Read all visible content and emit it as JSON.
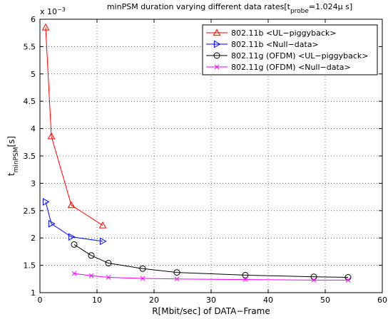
{
  "chart_data": {
    "type": "line",
    "title": {
      "main": "minPSM duration varying different data rates[t",
      "sub": "probe",
      "after": "=1.024μ s]"
    },
    "xlabel": "R[Mbit/sec] of DATA−Frame",
    "ylabel": {
      "main": "t",
      "sub": "minPSM",
      "after": "[s]"
    },
    "y_multiplier": "x 10",
    "y_multiplier_exp": "−3",
    "xlim": [
      0,
      60
    ],
    "ylim": [
      1,
      6
    ],
    "x_ticks": [
      0,
      10,
      20,
      30,
      40,
      50,
      60
    ],
    "x_tick_labels": [
      "0",
      "10",
      "20",
      "30",
      "40",
      "50",
      "60"
    ],
    "y_ticks": [
      1,
      1.5,
      2,
      2.5,
      3,
      3.5,
      4,
      4.5,
      5,
      5.5,
      6
    ],
    "y_tick_labels": [
      "1",
      "1.5",
      "2",
      "2.5",
      "3",
      "3.5",
      "4",
      "4.5",
      "5",
      "5.5",
      "6"
    ],
    "grid": true,
    "legend_position": "top-right",
    "series": [
      {
        "name": "802.11b <UL−piggyback>",
        "color": "#ff0000",
        "marker": "triangle-up",
        "x": [
          1,
          2,
          5.5,
          11
        ],
        "values": [
          5.85,
          3.86,
          2.6,
          2.23
        ]
      },
      {
        "name": "802.11b <Null−data>",
        "color": "#0000ff",
        "marker": "triangle-right",
        "x": [
          1,
          2,
          5.5,
          11
        ],
        "values": [
          2.66,
          2.26,
          2.02,
          1.94
        ]
      },
      {
        "name": "802.11g (OFDM) <UL−piggyback>",
        "color": "#000000",
        "marker": "circle",
        "x": [
          6,
          9,
          12,
          18,
          24,
          36,
          48,
          54
        ],
        "values": [
          1.88,
          1.68,
          1.54,
          1.44,
          1.37,
          1.32,
          1.29,
          1.28
        ]
      },
      {
        "name": "802.11g (OFDM) <Null−data>",
        "color": "#ff00ff",
        "marker": "x",
        "x": [
          6,
          9,
          12,
          18,
          24,
          36,
          48,
          54
        ],
        "values": [
          1.35,
          1.31,
          1.28,
          1.26,
          1.25,
          1.24,
          1.23,
          1.23
        ]
      }
    ]
  }
}
